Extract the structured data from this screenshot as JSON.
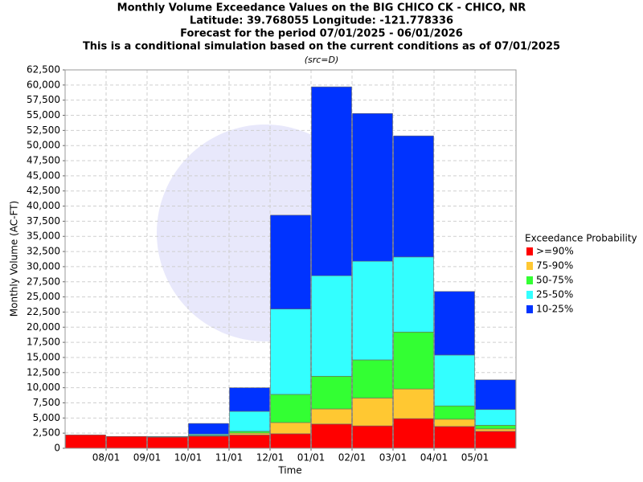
{
  "chart_data": {
    "type": "stacked_bar",
    "title_lines": [
      "Monthly Volume Exceedance Values on the BIG CHICO CK - CHICO, NR",
      "Latitude: 39.768055 Longitude: -121.778336",
      "Forecast for the period 07/01/2025 - 06/01/2026",
      "This is a conditional simulation based on the current conditions as of 07/01/2025"
    ],
    "subtitle": "(src=D)",
    "x_label": "Time",
    "y_label": "Monthly Volume (AC-FT)",
    "legend_title": "Exceedance Probability",
    "legend_position": "right",
    "grid": true,
    "categories": [
      null,
      "08/01",
      "09/01",
      "10/01",
      "11/01",
      "12/01",
      "01/01",
      "02/01",
      "03/01",
      "04/01",
      "05/01"
    ],
    "series": [
      {
        "name": ">=90%",
        "color": "#ff0000",
        "values": [
          2200,
          1950,
          1850,
          2000,
          2200,
          2400,
          4000,
          3700,
          4900,
          3600,
          2800
        ]
      },
      {
        "name": "75-90%",
        "color": "#ffc832",
        "values": [
          0,
          0,
          0,
          50,
          300,
          1850,
          2500,
          4600,
          4900,
          1200,
          400
        ]
      },
      {
        "name": "50-75%",
        "color": "#33ff33",
        "values": [
          0,
          0,
          0,
          100,
          300,
          4650,
          5400,
          6300,
          9400,
          2200,
          600
        ]
      },
      {
        "name": "25-50%",
        "color": "#33ffff",
        "values": [
          0,
          0,
          100,
          200,
          3300,
          14100,
          16600,
          16300,
          12400,
          8400,
          2600
        ]
      },
      {
        "name": "10-25%",
        "color": "#0033ff",
        "values": [
          0,
          0,
          0,
          1750,
          3900,
          15500,
          31200,
          24400,
          20000,
          10500,
          4900
        ]
      }
    ],
    "ylim": [
      0,
      62500
    ],
    "yticks": [
      0,
      {
        "value": 2500,
        "label": "2,500"
      },
      {
        "value": 5000,
        "label": "5,000"
      },
      {
        "value": 7500,
        "label": "7,500"
      },
      {
        "value": 10000,
        "label": "10,000"
      },
      {
        "value": 12500,
        "label": "12,500"
      },
      {
        "value": 15000,
        "label": "15,000"
      },
      {
        "value": 17500,
        "label": "17,500"
      },
      {
        "value": 20000,
        "label": "20,000"
      },
      {
        "value": 22500,
        "label": "22,500"
      },
      {
        "value": 25000,
        "label": "25,000"
      },
      {
        "value": 27500,
        "label": "27,500"
      },
      {
        "value": 30000,
        "label": "30,000"
      },
      {
        "value": 32500,
        "label": "32,500"
      },
      {
        "value": 35000,
        "label": "35,000"
      },
      {
        "value": 37500,
        "label": "37,500"
      },
      {
        "value": 40000,
        "label": "40,000"
      },
      {
        "value": 42500,
        "label": "42,500"
      },
      {
        "value": 45000,
        "label": "45,000"
      },
      {
        "value": 47500,
        "label": "47,500"
      },
      {
        "value": 50000,
        "label": "50,000"
      },
      {
        "value": 52500,
        "label": "52,500"
      },
      {
        "value": 55000,
        "label": "55,000"
      },
      {
        "value": 57500,
        "label": "57,500"
      },
      {
        "value": 60000,
        "label": "60,000"
      },
      {
        "value": 62500,
        "label": "62,500"
      }
    ]
  }
}
